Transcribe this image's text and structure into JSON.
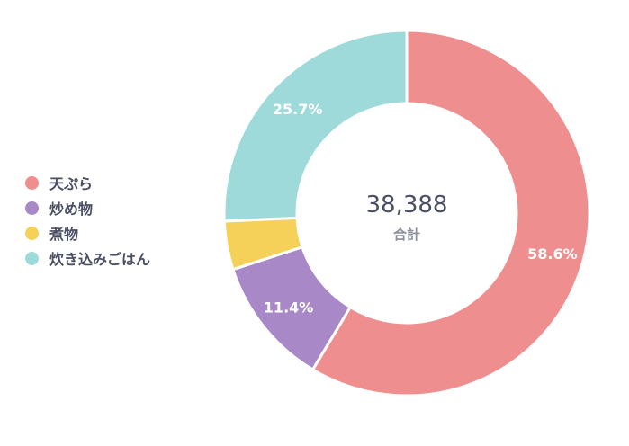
{
  "chart_data": {
    "type": "pie",
    "variant": "donut",
    "categories": [
      "天ぷら",
      "炒め物",
      "煮物",
      "炊き込みごはん"
    ],
    "values": [
      58.6,
      11.4,
      4.3,
      25.7
    ],
    "value_labels": [
      "58.6%",
      "11.4%",
      "",
      "25.7%"
    ],
    "colors": [
      "#ee8e8e",
      "#a988c7",
      "#f5d15a",
      "#9fdada"
    ],
    "center_value": "38,388",
    "center_label": "合計",
    "legend_position": "left"
  }
}
